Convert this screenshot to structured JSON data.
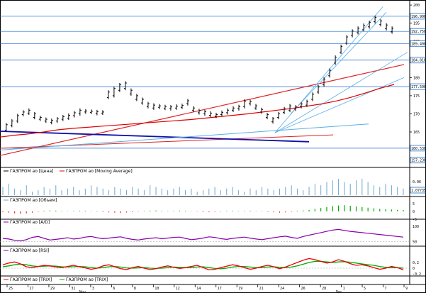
{
  "colors": {
    "price": "#000000",
    "moving_average": "#dd0000",
    "trendline_red": "#dd2222",
    "trendline_blue": "#1010aa",
    "channel_blue": "#5aaee8",
    "volume": "#6aa8d0",
    "oi_up": "#00aa00",
    "oi_down": "#ee2222",
    "ad": "#8800aa",
    "rsi": "#8800aa",
    "trix": "#00aa00",
    "trix_signal": "#ee0000",
    "grid": "#1e6ec8"
  },
  "price_axis": {
    "ticks": [
      "200",
      "195",
      "190",
      "185",
      "180",
      "175",
      "170",
      "165"
    ],
    "boxed": [
      "196.900",
      "192.750",
      "189.400",
      "184.810",
      "177.500",
      "160.530",
      "157.230"
    ]
  },
  "volume_axis": {
    "ticks": [
      "0.06"
    ],
    "boxed": "1.07735"
  },
  "oi_axis": {
    "ticks": [
      "5",
      "0",
      "-5"
    ]
  },
  "ad_axis": {
    "ticks": []
  },
  "rsi_axis": {
    "ticks": [
      "100",
      "50"
    ]
  },
  "trix_axis": {
    "ticks": [
      "0.2",
      "0",
      "-0.2"
    ]
  },
  "legends": {
    "price": "ГАЗПРОМ ао [Цена]",
    "ma": "ГАЗПРОМ ао [Moving Average]",
    "volume": "ГАЗПРОМ ао [Объем]",
    "ad": "ГАЗПРОМ ао [A/D]",
    "rsi": "ГАЗПРОМ ао [RSI]",
    "trix": "ГАЗПРОМ ао [TRIX]",
    "trix2": "ГАЗПРОМ ао [TRIX]"
  },
  "x_axis": {
    "ticks": [
      "25",
      "27",
      "29",
      "31",
      "3",
      "6",
      "8",
      "10",
      "12",
      "14",
      "17",
      "19",
      "21",
      "24",
      "26",
      "28",
      "1",
      "5",
      "7",
      "9"
    ],
    "months": [
      "Nov",
      "Dec"
    ]
  },
  "chart_data": {
    "type": "candlestick",
    "series": [
      {
        "values": [
          [
            165.5,
            167
          ],
          [
            166.8,
            168
          ],
          [
            168,
            169.5
          ],
          [
            169.8,
            170.5
          ],
          [
            170.2,
            171
          ],
          [
            169,
            170
          ],
          [
            168.5,
            169
          ],
          [
            168,
            168.5
          ],
          [
            167.6,
            168.2
          ],
          [
            168,
            168.6
          ],
          [
            168.5,
            169.2
          ],
          [
            168.8,
            169.6
          ],
          [
            169.5,
            170.3
          ],
          [
            170,
            171
          ],
          [
            170.5,
            170.8
          ],
          [
            170.4,
            170.7
          ],
          [
            170.1,
            170.6
          ],
          [
            170.2,
            170.5
          ],
          [
            174.5,
            176
          ],
          [
            175,
            177
          ],
          [
            176.5,
            178
          ],
          [
            177,
            178.5
          ],
          [
            175.5,
            176.5
          ],
          [
            174,
            175
          ],
          [
            173,
            174
          ],
          [
            172,
            172.8
          ],
          [
            171.6,
            172.4
          ],
          [
            171.8,
            172.2
          ],
          [
            171.5,
            172
          ],
          [
            171.4,
            171.9
          ],
          [
            171.6,
            172.1
          ],
          [
            171.8,
            172.3
          ],
          [
            172.8,
            173.6
          ],
          [
            171,
            171.6
          ],
          [
            170.3,
            170.9
          ],
          [
            170,
            170.6
          ],
          [
            169.6,
            170.2
          ],
          [
            169.3,
            169.8
          ],
          [
            169.8,
            170.4
          ],
          [
            170.3,
            171
          ],
          [
            171,
            171.6
          ],
          [
            171.4,
            172
          ],
          [
            172,
            173.5
          ],
          [
            172.8,
            173.4
          ],
          [
            171.6,
            172.2
          ],
          [
            170.5,
            171.2
          ],
          [
            169,
            169.8
          ],
          [
            167.8,
            168.6
          ],
          [
            169,
            170
          ],
          [
            170.4,
            171.4
          ],
          [
            171,
            172.2
          ],
          [
            171.3,
            171.9
          ],
          [
            172,
            172.7
          ],
          [
            172.4,
            173.4
          ],
          [
            174,
            175.4
          ],
          [
            176,
            177.4
          ],
          [
            178,
            179.6
          ],
          [
            180.5,
            182
          ],
          [
            184,
            185.6
          ],
          [
            187,
            188.6
          ],
          [
            189.5,
            191.2
          ],
          [
            191.6,
            192.8
          ],
          [
            192.4,
            193.6
          ],
          [
            193.2,
            194.4
          ],
          [
            194,
            195.2
          ],
          [
            195.4,
            196.6
          ],
          [
            194.6,
            195.6
          ],
          [
            193.5,
            194.5
          ],
          [
            192.6,
            193.6
          ]
        ]
      }
    ],
    "moving_average": [
      163.6,
      164.1,
      164.5,
      165,
      165.6,
      166,
      166.3,
      166.6,
      166.9,
      167.2,
      167.5,
      167.8,
      168.1,
      168.4,
      168.8,
      169.2,
      169.6,
      170,
      170.5,
      171,
      171.5,
      172.1,
      172.7,
      173.5,
      174.5,
      175.7,
      177,
      178.1
    ],
    "volume": [
      0.5,
      0.7,
      0.4,
      0.3,
      0.6,
      0.2,
      0.3,
      0.5,
      0.4,
      0.6,
      0.3,
      0.4,
      0.5,
      0.3,
      0.4,
      0.6,
      0.5,
      0.4,
      0.3,
      0.5,
      0.4,
      0.3,
      0.5,
      0.4,
      0.3,
      0.6,
      0.5,
      0.4,
      0.3,
      0.4,
      0.5,
      0.3,
      0.4,
      0.2,
      0.3,
      0.4,
      0.5,
      0.3,
      0.4,
      0.5,
      0.3,
      0.2,
      0.4,
      0.3,
      0.5,
      0.4,
      0.3,
      0.4,
      0.5,
      0.6,
      0.4,
      0.3,
      0.5,
      0.7,
      0.6,
      0.8,
      0.9,
      1.0,
      0.8,
      0.7,
      0.9,
      1.0,
      0.8,
      0.6,
      0.5,
      0.7,
      0.6,
      0.5,
      0.4
    ],
    "oi": [
      -0.5,
      -0.8,
      -1.2,
      -1.5,
      -1.2,
      -0.8,
      -0.3,
      0.4,
      0.6,
      0.5,
      0.3,
      0.2,
      0.3,
      0.5,
      0.4,
      0.2,
      0.3,
      -0.4,
      -0.6,
      -0.8,
      -1.0,
      -0.7,
      -0.4,
      -0.2,
      0.3,
      0.5,
      0.6,
      0.4,
      0.2,
      0.3,
      0.5,
      0.4,
      0.2,
      -0.2,
      -0.4,
      -0.5,
      -0.3,
      -0.2,
      0.3,
      0.4,
      0.2,
      0.3,
      0.4,
      0.2,
      -0.2,
      -0.3,
      -0.5,
      -0.8,
      -0.6,
      -0.3,
      0.4,
      0.6,
      1.0,
      1.6,
      2.2,
      2.8,
      3.4,
      3.8,
      4.0,
      3.6,
      3.2,
      2.8,
      2.4,
      2.0,
      1.6,
      1.4,
      1.2,
      1.0,
      0.9
    ],
    "ad": [
      60,
      58,
      54,
      52,
      56,
      63,
      66,
      60,
      55,
      57,
      59,
      62,
      58,
      60,
      64,
      66,
      62,
      59,
      61,
      63,
      65,
      60,
      57,
      55,
      58,
      60,
      62,
      59,
      61,
      63,
      64,
      60,
      56,
      58,
      61,
      65,
      63,
      59,
      57,
      60,
      62,
      64,
      61,
      58,
      56,
      59,
      62,
      65,
      67,
      63,
      60,
      66,
      70,
      74,
      78,
      82,
      86,
      88,
      85,
      82,
      80,
      78,
      76,
      74,
      72,
      70,
      68,
      66,
      64
    ],
    "rsi_line": [],
    "trix": [
      0.12,
      0.18,
      0.22,
      0.15,
      0.05,
      0.02,
      0.06,
      0.1,
      0.08,
      0.04,
      0.02,
      0.06,
      0.1,
      0.05,
      0.01,
      -0.04,
      0.0,
      0.08,
      0.12,
      0.05,
      -0.02,
      -0.05,
      0.02,
      0.06,
      0.0,
      -0.05,
      -0.02,
      0.04,
      0.08,
      0.03,
      -0.01,
      0.02,
      0.06,
      0.1,
      0.02,
      -0.06,
      -0.04,
      0.02,
      0.07,
      0.12,
      0.08,
      0.02,
      -0.04,
      0.0,
      0.06,
      0.1,
      0.05,
      -0.02,
      0.04,
      0.12,
      0.2,
      0.28,
      0.34,
      0.3,
      0.24,
      0.18,
      0.22,
      0.3,
      0.24,
      0.16,
      0.1,
      0.12,
      0.08,
      0.02,
      -0.04,
      0.0,
      0.06,
      0.02,
      -0.06
    ],
    "trix_signal": [
      0.05,
      0.08,
      0.12,
      0.14,
      0.12,
      0.08,
      0.06,
      0.07,
      0.08,
      0.07,
      0.05,
      0.04,
      0.05,
      0.06,
      0.05,
      0.02,
      0.0,
      0.02,
      0.05,
      0.06,
      0.04,
      0.01,
      0.0,
      0.01,
      0.02,
      0.0,
      -0.01,
      0.0,
      0.02,
      0.04,
      0.03,
      0.02,
      0.02,
      0.04,
      0.05,
      0.02,
      -0.01,
      -0.02,
      0.0,
      0.04,
      0.06,
      0.06,
      0.04,
      0.02,
      0.02,
      0.04,
      0.05,
      0.03,
      0.02,
      0.04,
      0.08,
      0.14,
      0.2,
      0.24,
      0.24,
      0.22,
      0.2,
      0.22,
      0.23,
      0.21,
      0.18,
      0.15,
      0.12,
      0.1,
      0.06,
      0.03,
      0.02,
      0.02,
      0.0
    ],
    "ylim_price": [
      156,
      201
    ]
  }
}
